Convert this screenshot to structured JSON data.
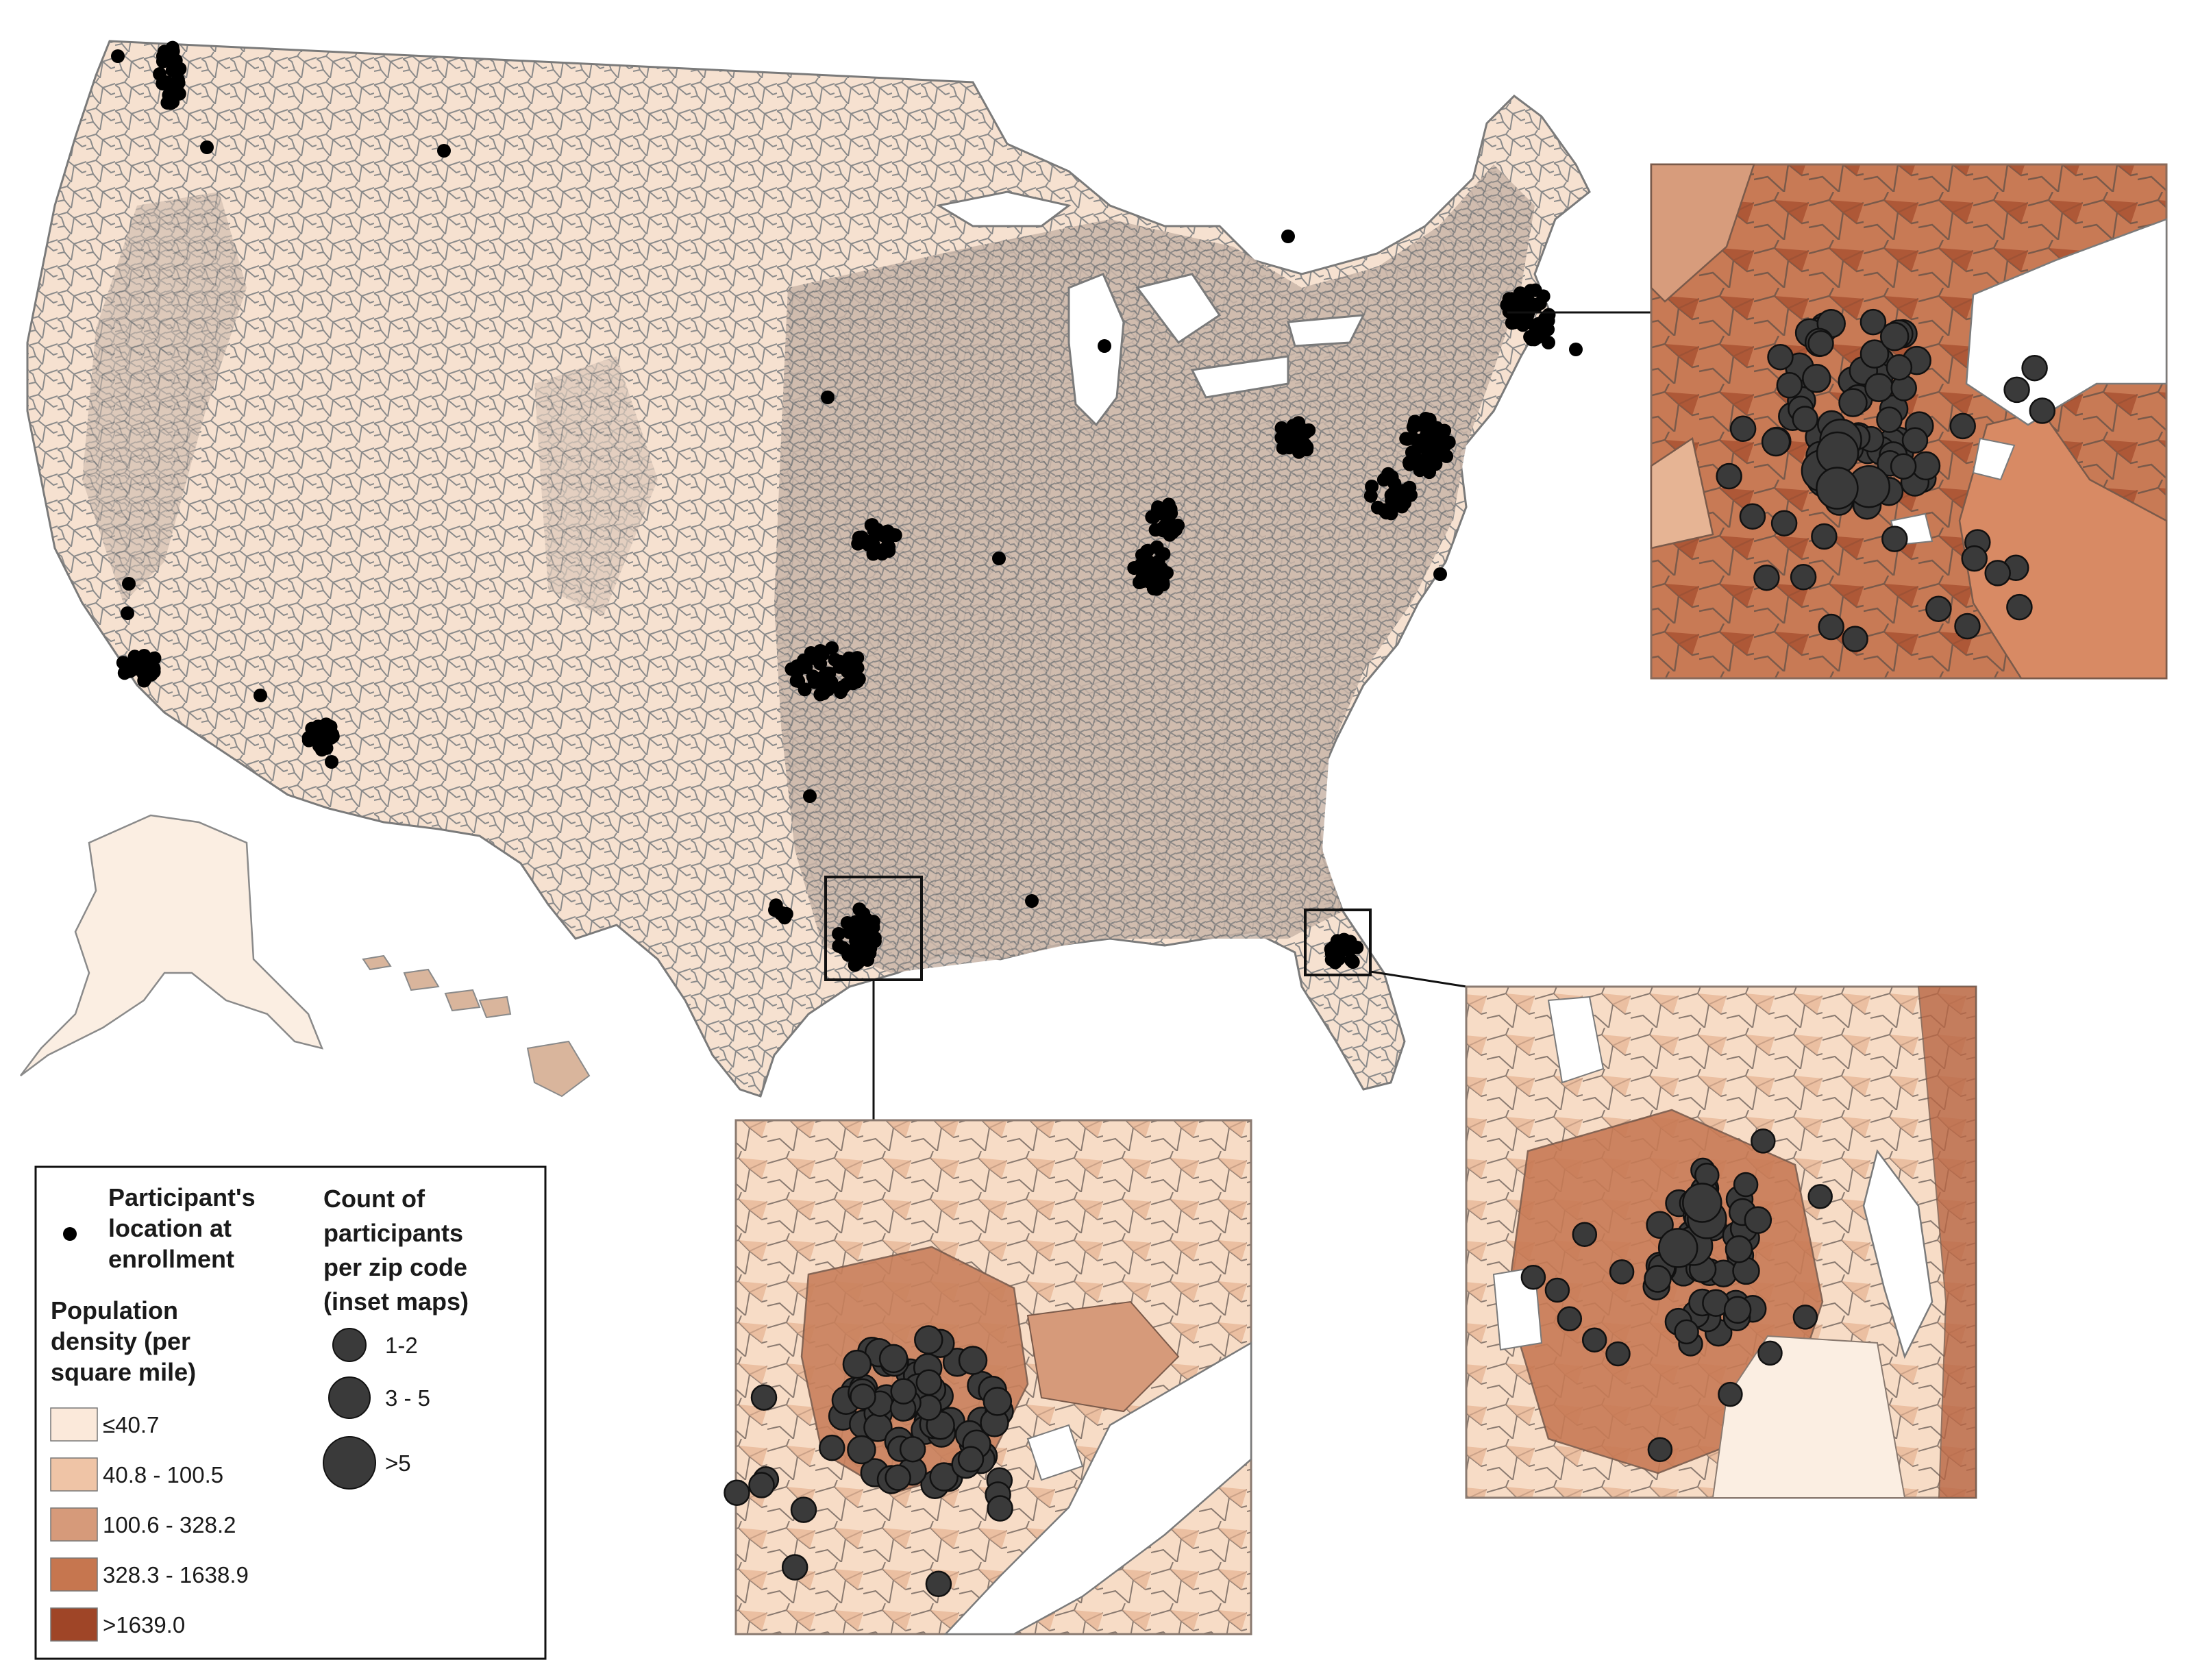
{
  "legend": {
    "participant_label": [
      "Participant's",
      "location at",
      "enrollment"
    ],
    "density_title": [
      "Population",
      "density (per",
      "square mile)"
    ],
    "count_title": [
      "Count of",
      "participants",
      "per zip code",
      "(inset maps)"
    ],
    "density_classes": [
      {
        "label": "≤40.7",
        "color": "#fbe9da"
      },
      {
        "label": "40.8 - 100.5",
        "color": "#efc4a6"
      },
      {
        "label": "100.6 - 328.2",
        "color": "#d69a7a"
      },
      {
        "label": "328.3 - 1638.9",
        "color": "#c6764f"
      },
      {
        "label": ">1639.0",
        "color": "#9f4527"
      }
    ],
    "count_classes": [
      "1-2",
      "3 - 5",
      ">5"
    ]
  },
  "colors": {
    "boundary": "#7a7a7a",
    "dense_boundary": "#8a8a8a",
    "dot": "#000000",
    "inset_dot": "#3a3a3a"
  }
}
